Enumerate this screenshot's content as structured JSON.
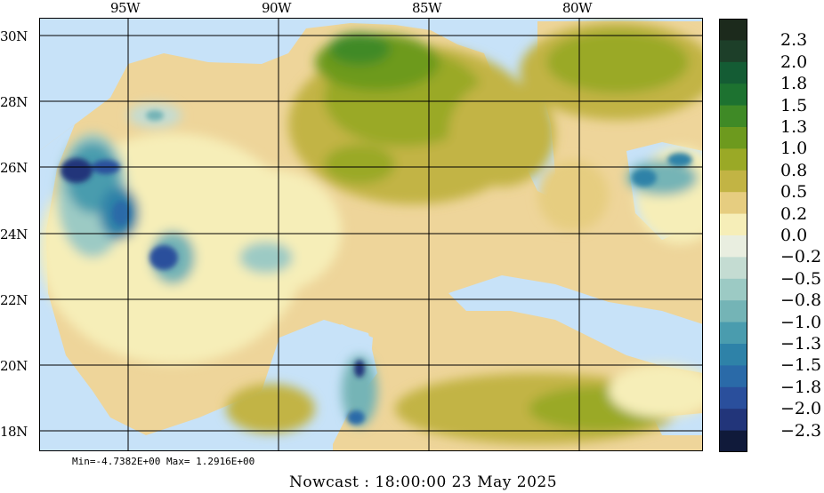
{
  "map": {
    "lon_labels": [
      "95W",
      "90W",
      "85W",
      "80W"
    ],
    "lat_labels": [
      "30N",
      "28N",
      "26N",
      "24N",
      "22N",
      "20N",
      "18N"
    ],
    "colors": {
      "water": "#c7e2f8",
      "grid": "#000000"
    }
  },
  "legend": {
    "labels": [
      "2.3",
      "2.0",
      "1.8",
      "1.5",
      "1.3",
      "1.0",
      "0.8",
      "0.5",
      "0.2",
      "0.0",
      "−0.2",
      "−0.5",
      "−0.8",
      "−1.0",
      "−1.3",
      "−1.5",
      "−1.8",
      "−2.0",
      "−2.3"
    ],
    "colors": [
      "#1c2a1c",
      "#1d3f29",
      "#145c34",
      "#1d7230",
      "#3f8a26",
      "#6d9a1e",
      "#9aa926",
      "#c2b444",
      "#e6cd80",
      "#f6eeb8",
      "#e9eee0",
      "#c4dcd2",
      "#9ccac4",
      "#74b4b6",
      "#4a9cae",
      "#2e82a8",
      "#2a6aa8",
      "#2a4f9c",
      "#22357a",
      "#101a3a"
    ]
  },
  "stats": {
    "minmax": "Min=-4.7382E+00  Max= 1.2916E+00"
  },
  "caption": "Nowcast : 18:00:00  23 May 2025"
}
